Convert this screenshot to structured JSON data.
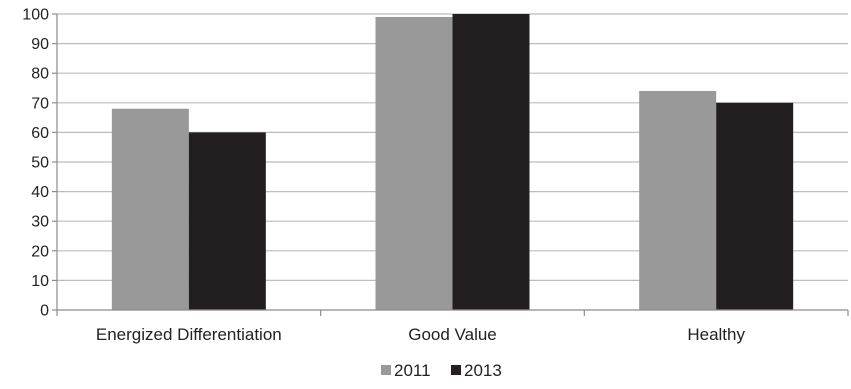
{
  "chart_data": {
    "type": "bar",
    "categories": [
      "Energized Differentiation",
      "Good Value",
      "Healthy"
    ],
    "series": [
      {
        "name": "2011",
        "values": [
          68,
          99,
          74
        ],
        "color": "#999999"
      },
      {
        "name": "2013",
        "values": [
          60,
          100,
          70
        ],
        "color": "#231f20"
      }
    ],
    "ylim": [
      0,
      100
    ],
    "yticks": [
      0,
      10,
      20,
      30,
      40,
      50,
      60,
      70,
      80,
      90,
      100
    ],
    "grid": true,
    "legend_position": "bottom-center",
    "title": "",
    "xlabel": "",
    "ylabel": ""
  }
}
